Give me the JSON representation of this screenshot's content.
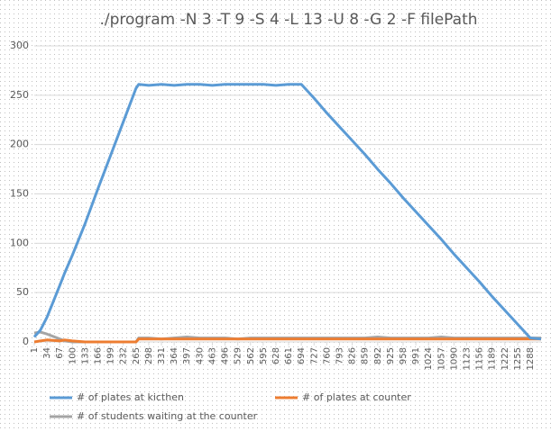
{
  "chart_data": {
    "type": "line",
    "title": "./program -N 3 -T 9 -S 4 -L 13 -U 8 -G 2 -F filePath",
    "x": [
      1,
      17,
      34,
      67,
      80,
      100,
      133,
      166,
      199,
      232,
      265,
      272,
      298,
      331,
      364,
      397,
      430,
      463,
      496,
      529,
      562,
      595,
      628,
      661,
      694,
      727,
      760,
      793,
      826,
      859,
      892,
      925,
      958,
      991,
      1024,
      1057,
      1090,
      1123,
      1156,
      1189,
      1222,
      1255,
      1288,
      1316
    ],
    "series": [
      {
        "name": "# of plates at kicthen",
        "color": "#5b9bd5",
        "values": [
          5,
          12,
          25,
          57,
          70,
          88,
          120,
          155,
          189,
          223,
          257,
          261,
          260,
          261,
          260,
          261,
          261,
          260,
          261,
          261,
          261,
          261,
          260,
          261,
          261,
          247,
          232,
          218,
          204,
          190,
          175,
          161,
          146,
          132,
          118,
          104,
          89,
          75,
          61,
          46,
          32,
          18,
          4,
          3
        ]
      },
      {
        "name": "# of plates at counter",
        "color": "#ed7d31",
        "values": [
          0,
          1,
          2,
          1,
          2,
          1,
          0,
          0,
          0,
          0,
          0,
          3,
          3,
          3,
          3,
          3,
          3,
          3,
          3,
          3,
          3,
          3,
          3,
          3,
          3,
          3,
          3,
          3,
          3,
          3,
          3,
          3,
          3,
          3,
          3,
          3,
          3,
          3,
          3,
          3,
          3,
          3,
          3,
          3
        ]
      },
      {
        "name": "# of students waiting at the counter",
        "color": "#a5a5a5",
        "values": [
          9,
          10,
          8,
          3,
          1,
          0,
          0,
          0,
          0,
          0,
          0,
          4,
          4,
          3,
          4,
          5,
          4,
          4,
          4,
          3,
          4,
          4,
          4,
          4,
          4,
          4,
          4,
          4,
          4,
          4,
          5,
          4,
          4,
          4,
          4,
          5,
          4,
          4,
          4,
          4,
          4,
          4,
          4,
          4
        ]
      }
    ],
    "xlim": [
      1,
      1316
    ],
    "xticks": [
      1,
      34,
      67,
      100,
      133,
      166,
      199,
      232,
      265,
      298,
      331,
      364,
      397,
      430,
      463,
      496,
      529,
      562,
      595,
      628,
      661,
      694,
      727,
      760,
      793,
      826,
      859,
      892,
      925,
      958,
      991,
      1024,
      1057,
      1090,
      1123,
      1156,
      1189,
      1222,
      1255,
      1288
    ],
    "ylim": [
      0,
      300
    ],
    "yticks": [
      0,
      50,
      100,
      150,
      200,
      250,
      300
    ],
    "grid": true,
    "legend": "bottom"
  }
}
